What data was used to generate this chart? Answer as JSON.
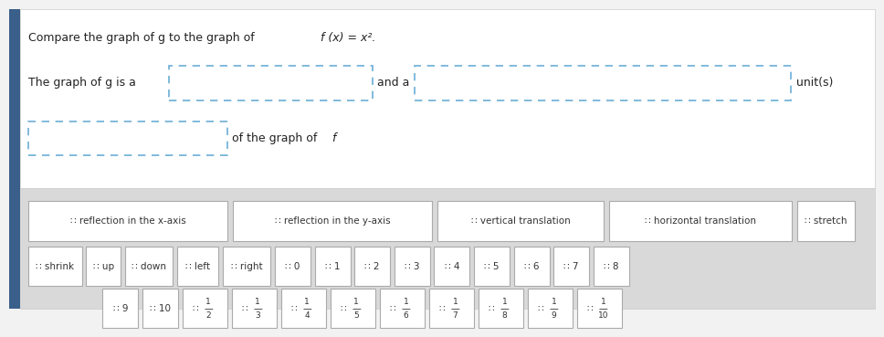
{
  "title_prefix": "Compare the graph of g to the graph of ",
  "title_func": "f (x) = x².",
  "sentence1_a": "The graph of g is a",
  "sentence1_b": "and a",
  "sentence1_c": "unit(s)",
  "sentence2_b": "of the graph of ",
  "sentence2_f": "f",
  "bg_color": "#f2f2f2",
  "upper_bg": "#ffffff",
  "lower_bg": "#d9d9d9",
  "box_border_color": "#6baed6",
  "tile_border_color": "#aaaaaa",
  "tile_fill": "#ffffff",
  "blue_bar_color": "#3a5f8a",
  "row1_tiles": [
    "reflection in the x-axis",
    "reflection in the y-axis",
    "vertical translation",
    "horizontal translation",
    "stretch"
  ],
  "row2_tiles": [
    "shrink",
    "up",
    "down",
    "left",
    "right",
    "0",
    "1",
    "2",
    "3",
    "4",
    "5",
    "6",
    "7",
    "8"
  ],
  "row3_tiles_plain": [
    "9",
    "10"
  ],
  "row3_tiles_frac": [
    "1/2",
    "1/3",
    "1/4",
    "1/5",
    "1/6",
    "1/7",
    "1/8",
    "1/9",
    "1/10"
  ]
}
